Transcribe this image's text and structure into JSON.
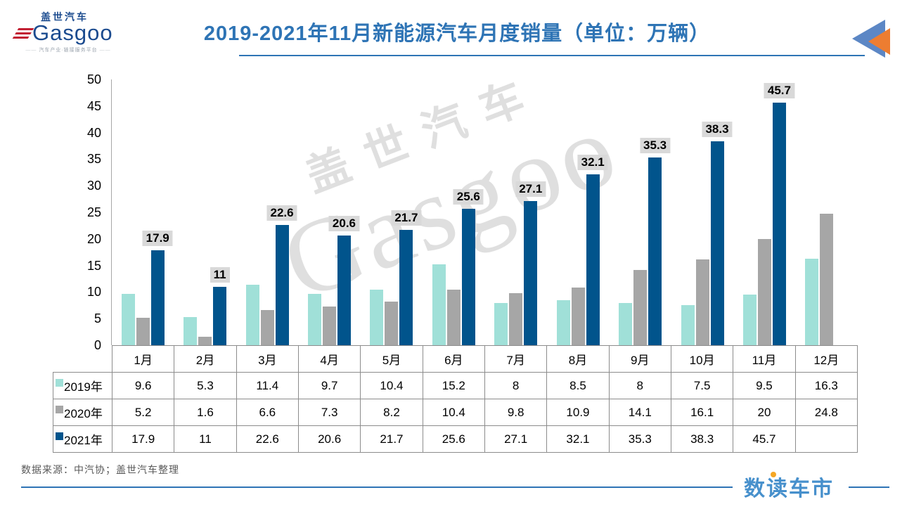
{
  "header": {
    "logo": {
      "cn": "盖世汽车",
      "en": "Gasgoo",
      "tagline": "汽车产业·链接服务平台"
    },
    "title": "2019-2021年11月新能源汽车月度销量（单位：万辆）"
  },
  "chart_data": {
    "type": "bar",
    "title": "2019-2021年11月新能源汽车月度销量（单位：万辆）",
    "categories": [
      "1月",
      "2月",
      "3月",
      "4月",
      "5月",
      "6月",
      "7月",
      "8月",
      "9月",
      "10月",
      "11月",
      "12月"
    ],
    "series": [
      {
        "name": "2019年",
        "color": "#A0E0D8",
        "values": [
          9.6,
          5.3,
          11.4,
          9.7,
          10.4,
          15.2,
          8,
          8.5,
          8,
          7.5,
          9.5,
          16.3
        ],
        "data_labels": false
      },
      {
        "name": "2020年",
        "color": "#A6A6A6",
        "values": [
          5.2,
          1.6,
          6.6,
          7.3,
          8.2,
          10.4,
          9.8,
          10.9,
          14.1,
          16.1,
          20,
          24.8
        ],
        "data_labels": false
      },
      {
        "name": "2021年",
        "color": "#01548C",
        "values": [
          17.9,
          11,
          22.6,
          20.6,
          21.7,
          25.6,
          27.1,
          32.1,
          35.3,
          38.3,
          45.7,
          null
        ],
        "data_labels": true
      }
    ],
    "xlabel": "",
    "ylabel": "",
    "ylim": [
      0,
      50
    ],
    "ytick_step": 5,
    "grid": false,
    "legend_position": "table-left",
    "data_label_bg": "#D9D9D9"
  },
  "watermark": {
    "line1": "盖世汽车",
    "line2": "Gasgoo"
  },
  "footer": {
    "source": "数据来源：中汽协；盖世汽车整理",
    "brand": "数读车市"
  },
  "colors": {
    "title_accent": "#2E74B5",
    "bar_2019": "#A0E0D8",
    "bar_2020": "#A6A6A6",
    "bar_2021": "#01548C",
    "table_border": "#8C8C8C",
    "icon_blue": "#5C87C5",
    "icon_orange": "#ED7D31",
    "brand_blue": "#4790CC",
    "brand_dot_orange": "#F5A623"
  }
}
